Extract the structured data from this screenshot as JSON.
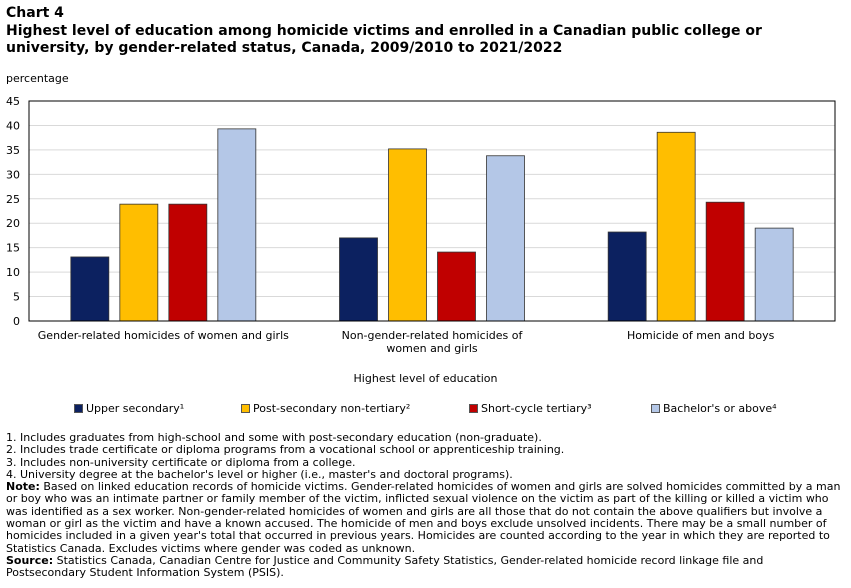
{
  "header": {
    "chart_number": "Chart 4",
    "title": "Highest level of education among homicide victims and enrolled in a Canadian public college or university, by gender-related status, Canada, 2009/2010 to 2021/2022"
  },
  "chart_data": {
    "type": "bar",
    "ylabel": "percentage",
    "xlabel": "Highest level of education",
    "ylim": [
      0,
      45
    ],
    "yticks": [
      0,
      5,
      10,
      15,
      20,
      25,
      30,
      35,
      40,
      45
    ],
    "grid": true,
    "legend_position": "bottom",
    "categories": [
      [
        "Gender-related homicides of women and girls"
      ],
      [
        "Non-gender-related homicides of",
        "women and girls"
      ],
      [
        "Homicide of men and boys"
      ]
    ],
    "series": [
      {
        "name": "Upper secondary¹",
        "color": "#0c2160",
        "values": [
          13.1,
          17.0,
          18.2
        ]
      },
      {
        "name": "Post-secondary non-tertiary²",
        "color": "#ffbe00",
        "values": [
          23.9,
          35.2,
          38.6
        ]
      },
      {
        "name": "Short-cycle tertiary³",
        "color": "#c00000",
        "values": [
          23.9,
          14.1,
          24.3
        ]
      },
      {
        "name": "Bachelor's or above⁴",
        "color": "#b4c7e7",
        "values": [
          39.3,
          33.8,
          19.0
        ]
      }
    ]
  },
  "notes": {
    "footnotes": [
      "1. Includes graduates from high-school and some with post-secondary education (non-graduate).",
      "2. Includes trade certificate or diploma programs from a vocational school or apprenticeship training.",
      "3. Includes non-university certificate or diploma from a college.",
      "4. University degree at the bachelor's level or higher (i.e., master's and doctoral programs)."
    ],
    "note_label": "Note:",
    "note_text": " Based on linked education records of homicide victims. Gender-related homicides of women and girls are solved homicides committed by a man or boy who was an intimate partner or family member of the victim, inflicted sexual violence on the victim as part of the killing or killed a victim who was identified as a sex worker. Non-gender-related homicides of women and girls are all those that do not contain the above qualifiers but involve a woman or girl as the victim and have a known accused. The homicide of men and boys exclude unsolved incidents. There may be a small number of homicides included in a given year's total that occurred in previous years. Homicides are counted according to the year in which they are reported to Statistics Canada. Excludes victims where gender was coded as unknown.",
    "source_label": "Source:",
    "source_text": " Statistics Canada, Canadian Centre for Justice and Community Safety Statistics, Gender-related homicide record linkage file and Postsecondary Student Information System (PSIS)."
  }
}
